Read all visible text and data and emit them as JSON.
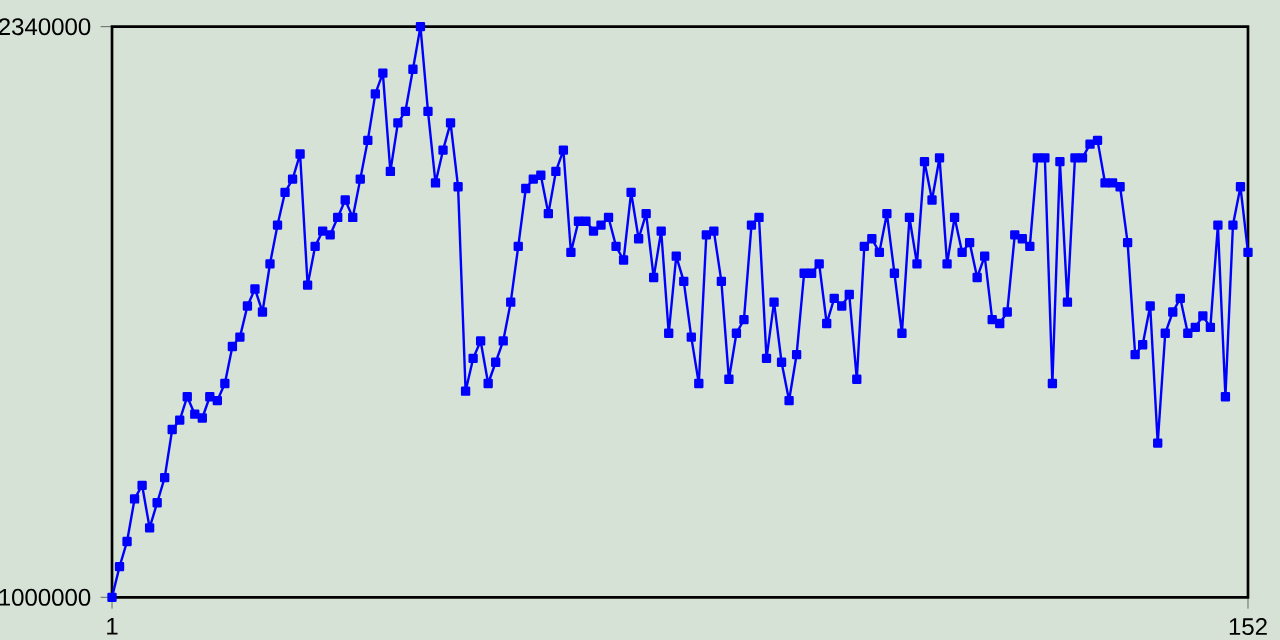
{
  "chart_data": {
    "type": "line",
    "x": [
      1,
      2,
      3,
      4,
      5,
      6,
      7,
      8,
      9,
      10,
      11,
      12,
      13,
      14,
      15,
      16,
      17,
      18,
      19,
      20,
      21,
      22,
      23,
      24,
      25,
      26,
      27,
      28,
      29,
      30,
      31,
      32,
      33,
      34,
      35,
      36,
      37,
      38,
      39,
      40,
      41,
      42,
      43,
      44,
      45,
      46,
      47,
      48,
      49,
      50,
      51,
      52,
      53,
      54,
      55,
      56,
      57,
      58,
      59,
      60,
      61,
      62,
      63,
      64,
      65,
      66,
      67,
      68,
      69,
      70,
      71,
      72,
      73,
      74,
      75,
      76,
      77,
      78,
      79,
      80,
      81,
      82,
      83,
      84,
      85,
      86,
      87,
      88,
      89,
      90,
      91,
      92,
      93,
      94,
      95,
      96,
      97,
      98,
      99,
      100,
      101,
      102,
      103,
      104,
      105,
      106,
      107,
      108,
      109,
      110,
      111,
      112,
      113,
      114,
      115,
      116,
      117,
      118,
      119,
      120,
      121,
      122,
      123,
      124,
      125,
      126,
      127,
      128,
      129,
      130,
      131,
      132,
      133,
      134,
      135,
      136,
      137,
      138,
      139,
      140,
      141,
      142,
      143,
      144,
      145,
      146,
      147,
      148,
      149,
      150,
      151,
      152
    ],
    "series": [
      {
        "color": "#0000ff",
        "values": [
          1000000,
          1072000,
          1131000,
          1231000,
          1263000,
          1163000,
          1222000,
          1281000,
          1394000,
          1416000,
          1471000,
          1430000,
          1421000,
          1471000,
          1462000,
          1502000,
          1589000,
          1611000,
          1684000,
          1724000,
          1670000,
          1783000,
          1874000,
          1951000,
          1982000,
          2041000,
          1733000,
          1824000,
          1860000,
          1851000,
          1892000,
          1933000,
          1892000,
          1982000,
          2073000,
          2182000,
          2231000,
          2000000,
          2114000,
          2141000,
          2240000,
          2340000,
          2141000,
          1973000,
          2050000,
          2114000,
          1964000,
          1484000,
          1561000,
          1602000,
          1502000,
          1552000,
          1602000,
          1693000,
          1824000,
          1960000,
          1982000,
          1991000,
          1901000,
          2000000,
          2050000,
          1810000,
          1883000,
          1883000,
          1860000,
          1874000,
          1892000,
          1824000,
          1792000,
          1951000,
          1842000,
          1901000,
          1751000,
          1860000,
          1620000,
          1801000,
          1742000,
          1611000,
          1502000,
          1851000,
          1860000,
          1742000,
          1512000,
          1620000,
          1652000,
          1874000,
          1892000,
          1561000,
          1693000,
          1552000,
          1462000,
          1570000,
          1761000,
          1761000,
          1783000,
          1643000,
          1702000,
          1684000,
          1711000,
          1512000,
          1824000,
          1842000,
          1810000,
          1901000,
          1761000,
          1620000,
          1892000,
          1783000,
          2023000,
          1933000,
          2032000,
          1783000,
          1892000,
          1810000,
          1833000,
          1751000,
          1801000,
          1652000,
          1643000,
          1670000,
          1851000,
          1842000,
          1824000,
          2032000,
          2032000,
          1502000,
          2023000,
          1693000,
          2032000,
          2032000,
          2064000,
          2073000,
          1973000,
          1973000,
          1964000,
          1833000,
          1570000,
          1593000,
          1684000,
          1362000,
          1620000,
          1670000,
          1702000,
          1620000,
          1634000,
          1661000,
          1634000,
          1874000,
          1471000,
          1874000,
          1964000,
          1810000
        ]
      }
    ],
    "xlim": [
      1,
      152
    ],
    "ylim": [
      1000000,
      2340000
    ],
    "xticks": [
      1,
      152
    ],
    "yticks": [
      1000000,
      2340000
    ],
    "marker": "square",
    "line_style": "solid"
  }
}
